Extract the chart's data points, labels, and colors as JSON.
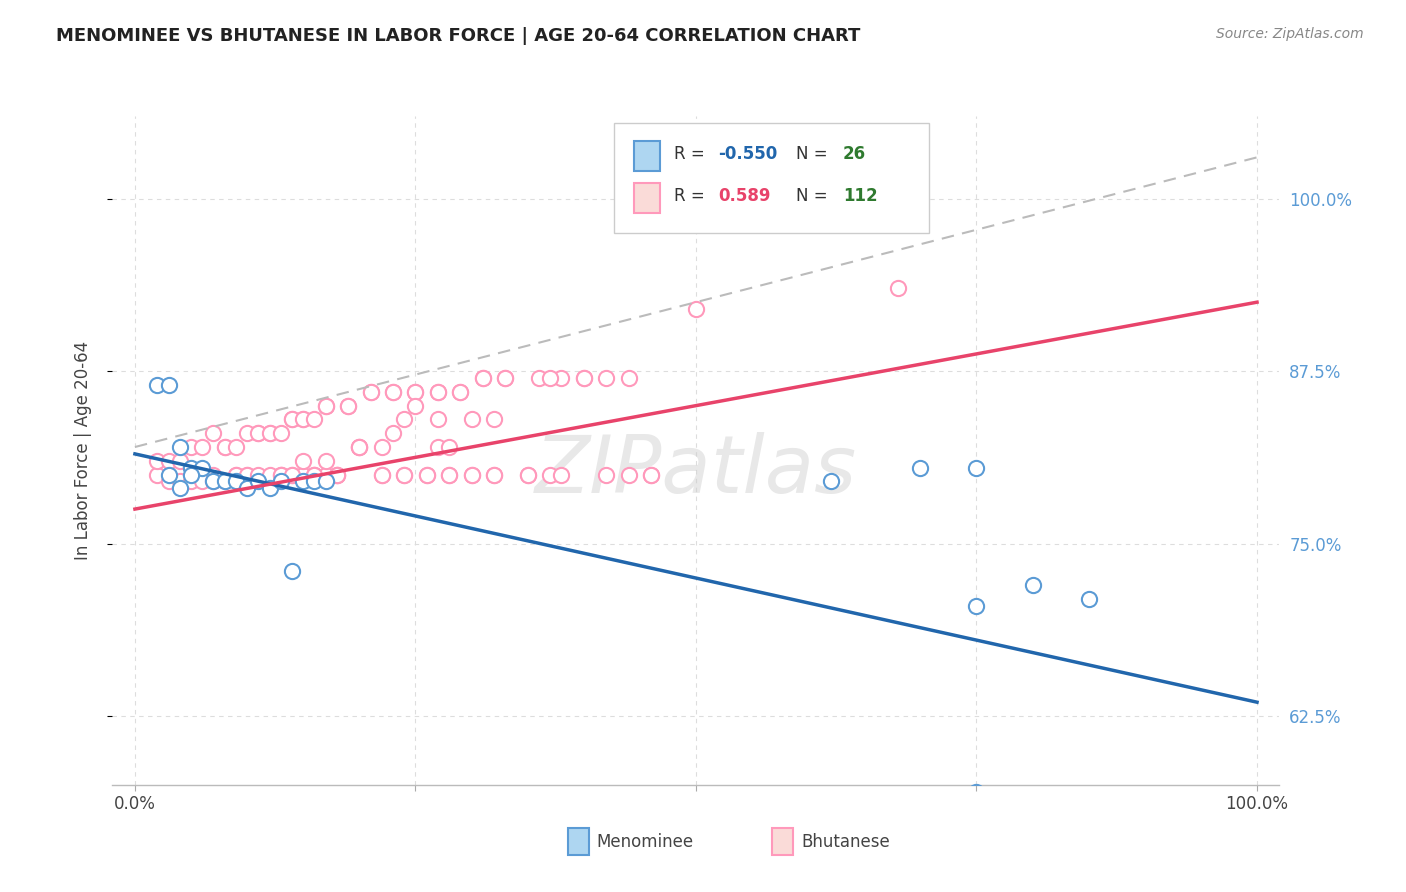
{
  "title": "MENOMINEE VS BHUTANESE IN LABOR FORCE | AGE 20-64 CORRELATION CHART",
  "source": "Source: ZipAtlas.com",
  "ylabel": "In Labor Force | Age 20-64",
  "xlim": [
    -0.02,
    1.02
  ],
  "ylim": [
    0.575,
    1.06
  ],
  "xtick_positions": [
    0.0,
    0.25,
    0.5,
    0.75,
    1.0
  ],
  "xticklabels": [
    "0.0%",
    "",
    "",
    "",
    "100.0%"
  ],
  "ytick_positions": [
    0.625,
    0.75,
    0.875,
    1.0
  ],
  "ytick_labels": [
    "62.5%",
    "75.0%",
    "87.5%",
    "100.0%"
  ],
  "legend": {
    "menominee_r": "-0.550",
    "menominee_n": "26",
    "bhutanese_r": "0.589",
    "bhutanese_n": "112"
  },
  "watermark": "ZIPatlas",
  "menominee_color": "#5B9BD5",
  "bhutanese_color": "#FF99BB",
  "menominee_scatter_x": [
    0.02,
    0.03,
    0.04,
    0.05,
    0.06,
    0.07,
    0.08,
    0.09,
    0.1,
    0.11,
    0.12,
    0.13,
    0.14,
    0.15,
    0.16,
    0.17,
    0.03,
    0.04,
    0.05,
    0.62,
    0.7,
    0.75,
    0.8,
    0.85,
    0.75,
    0.75
  ],
  "menominee_scatter_y": [
    0.865,
    0.865,
    0.82,
    0.805,
    0.805,
    0.795,
    0.795,
    0.795,
    0.79,
    0.795,
    0.79,
    0.795,
    0.73,
    0.795,
    0.795,
    0.795,
    0.8,
    0.79,
    0.8,
    0.795,
    0.805,
    0.805,
    0.72,
    0.71,
    0.705,
    0.57
  ],
  "bhutanese_scatter_x": [
    0.68,
    0.07,
    0.08,
    0.09,
    0.1,
    0.11,
    0.12,
    0.13,
    0.14,
    0.15,
    0.16,
    0.17,
    0.18,
    0.19,
    0.2,
    0.21,
    0.22,
    0.23,
    0.24,
    0.25,
    0.26,
    0.27,
    0.28,
    0.29,
    0.3,
    0.31,
    0.32,
    0.33,
    0.35,
    0.36,
    0.37,
    0.38,
    0.4,
    0.42,
    0.44,
    0.46,
    0.02,
    0.02,
    0.03,
    0.03,
    0.04,
    0.04,
    0.05,
    0.05,
    0.06,
    0.06,
    0.07,
    0.07,
    0.08,
    0.08,
    0.09,
    0.09,
    0.1,
    0.1,
    0.11,
    0.11,
    0.12,
    0.12,
    0.13,
    0.13,
    0.14,
    0.14,
    0.15,
    0.15,
    0.16,
    0.16,
    0.17,
    0.17,
    0.18,
    0.19,
    0.2,
    0.21,
    0.22,
    0.23,
    0.24,
    0.25,
    0.26,
    0.27,
    0.28,
    0.29,
    0.3,
    0.31,
    0.32,
    0.33,
    0.35,
    0.37,
    0.38,
    0.4,
    0.42,
    0.44,
    0.46,
    0.5,
    0.25,
    0.27,
    0.3,
    0.32,
    0.27,
    0.28,
    0.15,
    0.17,
    0.16,
    0.18,
    0.13,
    0.14,
    0.2,
    0.22,
    0.23,
    0.24
  ],
  "bhutanese_scatter_y": [
    0.935,
    0.8,
    0.82,
    0.8,
    0.8,
    0.83,
    0.83,
    0.8,
    0.84,
    0.84,
    0.8,
    0.85,
    0.8,
    0.85,
    0.82,
    0.86,
    0.8,
    0.86,
    0.8,
    0.86,
    0.8,
    0.86,
    0.8,
    0.86,
    0.8,
    0.87,
    0.8,
    0.87,
    0.8,
    0.87,
    0.8,
    0.87,
    0.87,
    0.87,
    0.8,
    0.8,
    0.8,
    0.81,
    0.795,
    0.81,
    0.795,
    0.81,
    0.795,
    0.82,
    0.795,
    0.82,
    0.795,
    0.83,
    0.795,
    0.82,
    0.8,
    0.82,
    0.8,
    0.83,
    0.8,
    0.83,
    0.8,
    0.83,
    0.8,
    0.83,
    0.8,
    0.84,
    0.8,
    0.84,
    0.8,
    0.84,
    0.8,
    0.85,
    0.8,
    0.85,
    0.82,
    0.86,
    0.8,
    0.86,
    0.8,
    0.86,
    0.8,
    0.86,
    0.8,
    0.86,
    0.8,
    0.87,
    0.8,
    0.87,
    0.8,
    0.87,
    0.8,
    0.87,
    0.8,
    0.87,
    0.8,
    0.92,
    0.85,
    0.84,
    0.84,
    0.84,
    0.82,
    0.82,
    0.81,
    0.81,
    0.8,
    0.8,
    0.8,
    0.8,
    0.82,
    0.82,
    0.83,
    0.84
  ],
  "menominee_trend_x": [
    0.0,
    1.0
  ],
  "menominee_trend_y": [
    0.815,
    0.635
  ],
  "bhutanese_trend_x": [
    0.0,
    1.0
  ],
  "bhutanese_trend_y": [
    0.775,
    0.925
  ],
  "dashed_trend_x": [
    0.0,
    1.0
  ],
  "dashed_trend_y": [
    0.82,
    1.03
  ],
  "grid_color": "#dddddd",
  "bg_color": "#ffffff",
  "menominee_color_light": "#AED6F1",
  "bhutanese_color_light": "#FADBD8"
}
